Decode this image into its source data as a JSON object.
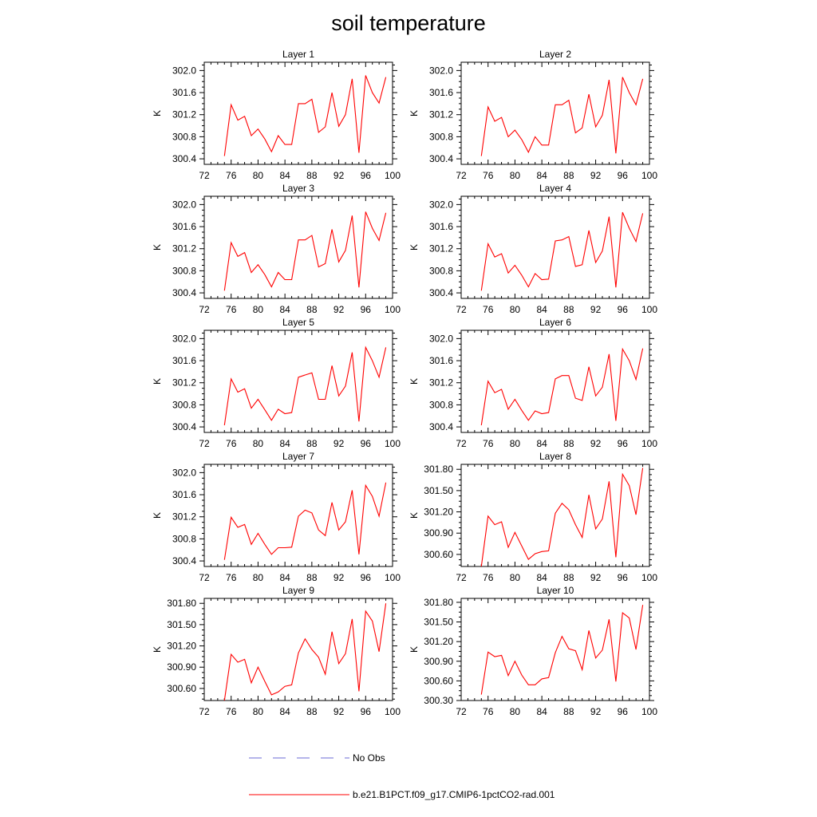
{
  "title": "soil temperature",
  "legend": {
    "items": [
      {
        "label": "No Obs",
        "color": "#6b6bd6",
        "style": "dashed"
      },
      {
        "label": "b.e21.B1PCT.f09_g17.CMIP6-1pctCO2-rad.001",
        "color": "#ff0000",
        "style": "solid"
      }
    ]
  },
  "chart_data": [
    {
      "type": "line",
      "title": "Layer 1",
      "ylabel": "K",
      "xlim": [
        72,
        100
      ],
      "ylim": [
        300.3,
        302.15
      ],
      "xticks": [
        "72",
        "76",
        "80",
        "84",
        "88",
        "92",
        "96",
        "100"
      ],
      "yticks": [
        "300.4",
        "300.8",
        "301.2",
        "301.6",
        "302.0"
      ],
      "series": [
        {
          "color": "#ff0000",
          "x": [
            75,
            76,
            77,
            78,
            79,
            80,
            81,
            82,
            83,
            84,
            85,
            86,
            87,
            88,
            89,
            90,
            91,
            92,
            93,
            94,
            95,
            96,
            97,
            98,
            99
          ],
          "y": [
            300.45,
            301.38,
            301.1,
            301.17,
            300.82,
            300.94,
            300.76,
            300.53,
            300.82,
            300.66,
            300.66,
            301.4,
            301.4,
            301.48,
            300.88,
            300.98,
            301.6,
            300.99,
            301.2,
            301.85,
            300.51,
            301.91,
            301.6,
            301.41,
            301.88
          ]
        }
      ]
    },
    {
      "type": "line",
      "title": "Layer 2",
      "ylabel": "K",
      "xlim": [
        72,
        100
      ],
      "ylim": [
        300.3,
        302.15
      ],
      "xticks": [
        "72",
        "76",
        "80",
        "84",
        "88",
        "92",
        "96",
        "100"
      ],
      "yticks": [
        "300.4",
        "300.8",
        "301.2",
        "301.6",
        "302.0"
      ],
      "series": [
        {
          "color": "#ff0000",
          "x": [
            75,
            76,
            77,
            78,
            79,
            80,
            81,
            82,
            83,
            84,
            85,
            86,
            87,
            88,
            89,
            90,
            91,
            92,
            93,
            94,
            95,
            96,
            97,
            98,
            99
          ],
          "y": [
            300.45,
            301.34,
            301.08,
            301.15,
            300.8,
            300.92,
            300.75,
            300.52,
            300.8,
            300.65,
            300.65,
            301.38,
            301.38,
            301.46,
            300.87,
            300.96,
            301.57,
            300.98,
            301.19,
            301.83,
            300.5,
            301.88,
            301.6,
            301.38,
            301.85
          ]
        }
      ]
    },
    {
      "type": "line",
      "title": "Layer 3",
      "ylabel": "K",
      "xlim": [
        72,
        100
      ],
      "ylim": [
        300.3,
        302.15
      ],
      "xticks": [
        "72",
        "76",
        "80",
        "84",
        "88",
        "92",
        "96",
        "100"
      ],
      "yticks": [
        "300.4",
        "300.8",
        "301.2",
        "301.6",
        "302.0"
      ],
      "series": [
        {
          "color": "#ff0000",
          "x": [
            75,
            76,
            77,
            78,
            79,
            80,
            81,
            82,
            83,
            84,
            85,
            86,
            87,
            88,
            89,
            90,
            91,
            92,
            93,
            94,
            95,
            96,
            97,
            98,
            99
          ],
          "y": [
            300.44,
            301.31,
            301.06,
            301.13,
            300.77,
            300.91,
            300.73,
            300.51,
            300.77,
            300.64,
            300.64,
            301.36,
            301.36,
            301.44,
            300.87,
            300.93,
            301.55,
            300.96,
            301.17,
            301.8,
            300.5,
            301.87,
            301.57,
            301.35,
            301.85
          ]
        }
      ]
    },
    {
      "type": "line",
      "title": "Layer 4",
      "ylabel": "K",
      "xlim": [
        72,
        100
      ],
      "ylim": [
        300.3,
        302.15
      ],
      "xticks": [
        "72",
        "76",
        "80",
        "84",
        "88",
        "92",
        "96",
        "100"
      ],
      "yticks": [
        "300.4",
        "300.8",
        "301.2",
        "301.6",
        "302.0"
      ],
      "series": [
        {
          "color": "#ff0000",
          "x": [
            75,
            76,
            77,
            78,
            79,
            80,
            81,
            82,
            83,
            84,
            85,
            86,
            87,
            88,
            89,
            90,
            91,
            92,
            93,
            94,
            95,
            96,
            97,
            98,
            99
          ],
          "y": [
            300.44,
            301.29,
            301.05,
            301.11,
            300.76,
            300.9,
            300.72,
            300.51,
            300.75,
            300.64,
            300.65,
            301.34,
            301.36,
            301.42,
            300.88,
            300.91,
            301.53,
            300.95,
            301.16,
            301.78,
            300.5,
            301.86,
            301.57,
            301.33,
            301.84
          ]
        }
      ]
    },
    {
      "type": "line",
      "title": "Layer 5",
      "ylabel": "K",
      "xlim": [
        72,
        100
      ],
      "ylim": [
        300.3,
        302.15
      ],
      "xticks": [
        "72",
        "76",
        "80",
        "84",
        "88",
        "92",
        "96",
        "100"
      ],
      "yticks": [
        "300.4",
        "300.8",
        "301.2",
        "301.6",
        "302.0"
      ],
      "series": [
        {
          "color": "#ff0000",
          "x": [
            75,
            76,
            77,
            78,
            79,
            80,
            81,
            82,
            83,
            84,
            85,
            86,
            87,
            88,
            89,
            90,
            91,
            92,
            93,
            94,
            95,
            96,
            97,
            98,
            99
          ],
          "y": [
            300.43,
            301.27,
            301.03,
            301.09,
            300.74,
            300.9,
            300.71,
            300.52,
            300.72,
            300.64,
            300.66,
            301.3,
            301.34,
            301.38,
            300.9,
            300.9,
            301.51,
            300.96,
            301.14,
            301.75,
            300.5,
            301.84,
            301.6,
            301.3,
            301.84
          ]
        }
      ]
    },
    {
      "type": "line",
      "title": "Layer 6",
      "ylabel": "K",
      "xlim": [
        72,
        100
      ],
      "ylim": [
        300.3,
        302.15
      ],
      "xticks": [
        "72",
        "76",
        "80",
        "84",
        "88",
        "92",
        "96",
        "100"
      ],
      "yticks": [
        "300.4",
        "300.8",
        "301.2",
        "301.6",
        "302.0"
      ],
      "series": [
        {
          "color": "#ff0000",
          "x": [
            75,
            76,
            77,
            78,
            79,
            80,
            81,
            82,
            83,
            84,
            85,
            86,
            87,
            88,
            89,
            90,
            91,
            92,
            93,
            94,
            95,
            96,
            97,
            98,
            99
          ],
          "y": [
            300.43,
            301.23,
            301.02,
            301.08,
            300.72,
            300.9,
            300.7,
            300.52,
            300.69,
            300.64,
            300.66,
            301.27,
            301.33,
            301.33,
            300.92,
            300.88,
            301.49,
            300.96,
            301.12,
            301.72,
            300.51,
            301.81,
            301.6,
            301.26,
            301.82
          ]
        }
      ]
    },
    {
      "type": "line",
      "title": "Layer 7",
      "ylabel": "K",
      "xlim": [
        72,
        100
      ],
      "ylim": [
        300.3,
        302.15
      ],
      "xticks": [
        "72",
        "76",
        "80",
        "84",
        "88",
        "92",
        "96",
        "100"
      ],
      "yticks": [
        "300.4",
        "300.8",
        "301.2",
        "301.6",
        "302.0"
      ],
      "series": [
        {
          "color": "#ff0000",
          "x": [
            75,
            76,
            77,
            78,
            79,
            80,
            81,
            82,
            83,
            84,
            85,
            86,
            87,
            88,
            89,
            90,
            91,
            92,
            93,
            94,
            95,
            96,
            97,
            98,
            99
          ],
          "y": [
            300.42,
            301.19,
            301.01,
            301.06,
            300.7,
            300.9,
            300.7,
            300.52,
            300.64,
            300.64,
            300.65,
            301.21,
            301.32,
            301.27,
            300.96,
            300.86,
            301.46,
            300.96,
            301.11,
            301.68,
            300.52,
            301.77,
            301.57,
            301.21,
            301.82
          ]
        }
      ]
    },
    {
      "type": "line",
      "title": "Layer 8",
      "ylabel": "K",
      "xlim": [
        72,
        100
      ],
      "ylim": [
        300.43,
        301.87
      ],
      "xticks": [
        "72",
        "76",
        "80",
        "84",
        "88",
        "92",
        "96",
        "100"
      ],
      "yticks": [
        "300.60",
        "300.90",
        "301.20",
        "301.50",
        "301.80"
      ],
      "series": [
        {
          "color": "#ff0000",
          "x": [
            75,
            76,
            77,
            78,
            79,
            80,
            81,
            82,
            83,
            84,
            85,
            86,
            87,
            88,
            89,
            90,
            91,
            92,
            93,
            94,
            95,
            96,
            97,
            98,
            99
          ],
          "y": [
            300.43,
            301.14,
            301.02,
            301.06,
            300.7,
            300.91,
            300.72,
            300.53,
            300.61,
            300.64,
            300.65,
            301.18,
            301.32,
            301.23,
            301.02,
            300.84,
            301.44,
            300.96,
            301.1,
            301.63,
            300.56,
            301.73,
            301.57,
            301.16,
            301.82
          ]
        }
      ]
    },
    {
      "type": "line",
      "title": "Layer 9",
      "ylabel": "K",
      "xlim": [
        72,
        100
      ],
      "ylim": [
        300.43,
        301.87
      ],
      "xticks": [
        "72",
        "76",
        "80",
        "84",
        "88",
        "92",
        "96",
        "100"
      ],
      "yticks": [
        "300.60",
        "300.90",
        "301.20",
        "301.50",
        "301.80"
      ],
      "series": [
        {
          "color": "#ff0000",
          "x": [
            75,
            76,
            77,
            78,
            79,
            80,
            81,
            82,
            83,
            84,
            85,
            86,
            87,
            88,
            89,
            90,
            91,
            92,
            93,
            94,
            95,
            96,
            97,
            98,
            99
          ],
          "y": [
            300.43,
            301.08,
            300.97,
            301.01,
            300.68,
            300.9,
            300.7,
            300.51,
            300.55,
            300.63,
            300.65,
            301.1,
            301.3,
            301.15,
            301.04,
            300.8,
            301.4,
            300.95,
            301.09,
            301.58,
            300.56,
            301.69,
            301.55,
            301.12,
            301.8
          ]
        }
      ]
    },
    {
      "type": "line",
      "title": "Layer 10",
      "ylabel": "K",
      "xlim": [
        72,
        100
      ],
      "ylim": [
        300.3,
        301.86
      ],
      "xticks": [
        "72",
        "76",
        "80",
        "84",
        "88",
        "92",
        "96",
        "100"
      ],
      "yticks": [
        "300.30",
        "300.60",
        "300.90",
        "301.20",
        "301.50",
        "301.80"
      ],
      "series": [
        {
          "color": "#ff0000",
          "x": [
            75,
            76,
            77,
            78,
            79,
            80,
            81,
            82,
            83,
            84,
            85,
            86,
            87,
            88,
            89,
            90,
            91,
            92,
            93,
            94,
            95,
            96,
            97,
            98,
            99
          ],
          "y": [
            300.39,
            301.04,
            300.97,
            300.99,
            300.68,
            300.9,
            300.69,
            300.54,
            300.54,
            300.63,
            300.65,
            301.03,
            301.28,
            301.09,
            301.06,
            300.77,
            301.37,
            300.95,
            301.07,
            301.54,
            300.59,
            301.64,
            301.56,
            301.08,
            301.76
          ]
        }
      ]
    }
  ]
}
